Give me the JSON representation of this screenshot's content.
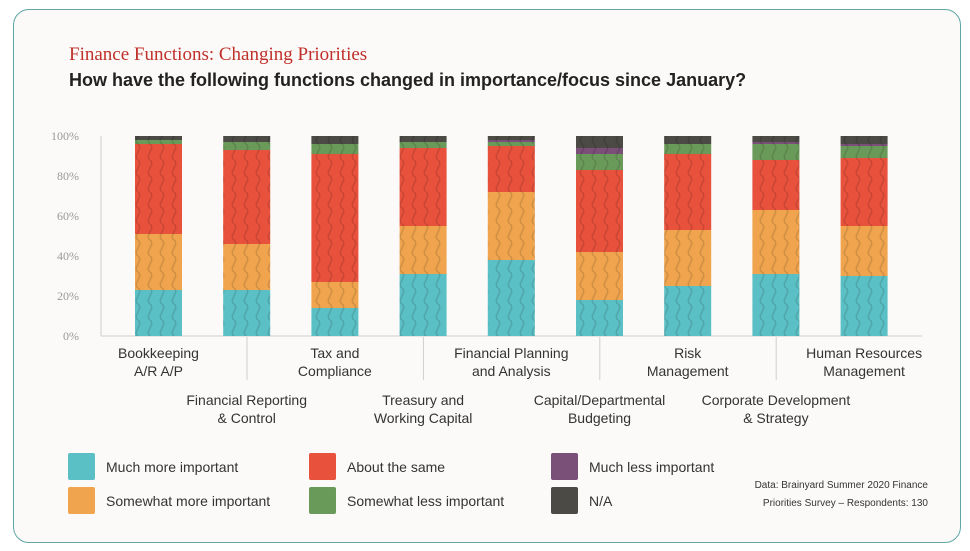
{
  "title": "Finance Functions: Changing Priorities",
  "subtitle": "How have the following functions changed in importance/focus since January?",
  "source_line1": "Data: Brainyard Summer 2020 Finance",
  "source_line2": "Priorities Survey – Respondents: 130",
  "colors": {
    "much_more": "#5bc0c5",
    "somewhat_more": "#f0a44e",
    "same": "#e8513c",
    "somewhat_less": "#6a9a5a",
    "much_less": "#7a4f78",
    "na": "#4c4a45"
  },
  "chart_data": {
    "type": "bar",
    "stacked": true,
    "title": "Finance Functions: Changing Priorities",
    "subtitle": "How have the following functions changed in importance/focus since January?",
    "ylim": [
      0,
      100
    ],
    "yticks": [
      "0%",
      "20%",
      "40%",
      "60%",
      "80%",
      "100%"
    ],
    "legend_position": "bottom",
    "categories": [
      {
        "line1": "Bookkeeping",
        "line2": "A/R  A/P",
        "row": "top"
      },
      {
        "line1": "Financial Reporting",
        "line2": "& Control",
        "row": "bottom"
      },
      {
        "line1": "Tax and",
        "line2": "Compliance",
        "row": "top"
      },
      {
        "line1": "Treasury and",
        "line2": "Working Capital",
        "row": "bottom"
      },
      {
        "line1": "Financial Planning",
        "line2": "and Analysis",
        "row": "top"
      },
      {
        "line1": "Capital/Departmental",
        "line2": "Budgeting",
        "row": "bottom"
      },
      {
        "line1": "Risk",
        "line2": "Management",
        "row": "top"
      },
      {
        "line1": "Corporate Development",
        "line2": "& Strategy",
        "row": "bottom"
      },
      {
        "line1": "Human Resources",
        "line2": "Management",
        "row": "top"
      }
    ],
    "series": [
      {
        "name": "Much more important",
        "key": "much_more",
        "values": [
          23,
          23,
          14,
          31,
          38,
          18,
          25,
          31,
          30
        ]
      },
      {
        "name": "Somewhat more important",
        "key": "somewhat_more",
        "values": [
          28,
          23,
          13,
          24,
          34,
          24,
          28,
          32,
          25
        ]
      },
      {
        "name": "About the same",
        "key": "same",
        "values": [
          45,
          47,
          64,
          39,
          23,
          41,
          38,
          25,
          34
        ]
      },
      {
        "name": "Somewhat less important",
        "key": "somewhat_less",
        "values": [
          2,
          4,
          5,
          3,
          2,
          8,
          5,
          8,
          6
        ]
      },
      {
        "name": "Much less important",
        "key": "much_less",
        "values": [
          0,
          0,
          0,
          0,
          1,
          3,
          0,
          1,
          1
        ]
      },
      {
        "name": "N/A",
        "key": "na",
        "values": [
          2,
          3,
          4,
          3,
          2,
          6,
          4,
          3,
          4
        ]
      }
    ]
  },
  "legend": [
    {
      "label": "Much more important",
      "key": "much_more"
    },
    {
      "label": "About the same",
      "key": "same"
    },
    {
      "label": "Much less important",
      "key": "much_less"
    },
    {
      "label": "Somewhat more important",
      "key": "somewhat_more"
    },
    {
      "label": "Somewhat less important",
      "key": "somewhat_less"
    },
    {
      "label": "N/A",
      "key": "na"
    }
  ]
}
